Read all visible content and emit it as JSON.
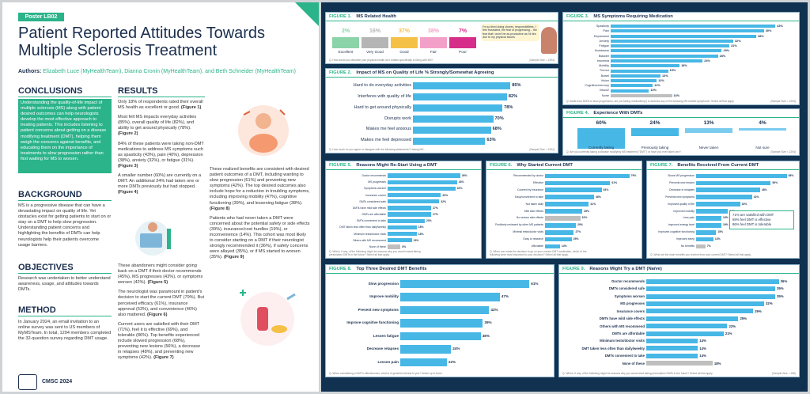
{
  "poster": {
    "tag": "Poster LB02",
    "title": "Patient Reported Attitudes Towards Multiple Sclerosis Treatment",
    "authors_label": "Authors:",
    "authors": "Elizabeth Luce (MyHealthTeam), Dianna Cronin (MyHealthTeam), and Beth Schneider (MyHealthTeam)",
    "conclusions_h": "CONCLUSIONS",
    "conclusions": "Understanding the quality-of-life impact of multiple sclerosis (MS) along with patient desired outcomes can help neurologists develop the most effective approach to treating patients. This includes listening to patient concerns about getting on a disease modifying treatment (DMT), helping them weigh the concerns against benefits, and educating them on the importance of treatments to slow progression rather than first waiting for MS to worsen.",
    "background_h": "BACKGROUND",
    "background": "MS is a progressive disease that can have a devastating impact on quality of life. Yet obstacles exist for getting patients to start on or stay on a DMT to help slow progression. Understanding patient concerns and highlighting the benefits of DMTs can help neurologists help their patients overcome usage barriers.",
    "objectives_h": "OBJECTIVES",
    "objectives": "Research was undertaken to better understand awareness, usage, and attitudes towards DMTs.",
    "method_h": "METHOD",
    "method": "In January 2024, an email invitation to an online survey was sent to US members of MyMSTeam. In total, 1294 members completed the 32-question survey regarding DMT usage.",
    "results_h": "RESULTS",
    "results_col1": [
      {
        "t": "Only 18% of respondents rated their overall MS health as excellent or good. ",
        "b": "(Figure 1)"
      },
      {
        "t": "Most felt MS impacts everyday activities (85%), overall quality of life (82%), and ability to get around physically (78%). ",
        "b": "(Figure 2)"
      },
      {
        "t": "84% of these patients were taking non-DMT medications to address MS symptoms such as spasticity (43%), pain (40%), depression (38%), anxiety (32%), or fatigue (31%). ",
        "b": "(Figure 3)"
      },
      {
        "t": "A smaller number (60%) are currently on a DMT. An additional 24% had taken one or more DMTs previously but had stopped. ",
        "b": "(Figure 4)"
      }
    ],
    "results_col1b": [
      {
        "t": "These abandoners might consider going back on a DMT if their doctor recommends (45%), MS progresses (43%), or symptoms worsen (42%). ",
        "b": "(Figure 5)"
      },
      {
        "t": "The neurologist was paramount in patient's decision to start the current DMT (79%). But perceived efficacy (61%), insurance approval (53%), and convenience (46%) also mattered. ",
        "b": "(Figure 6)"
      },
      {
        "t": "Current users are satisfied with their DMT (71%), feel it is effective (69%), and tolerable (86%). Top benefits experienced include slowed progression (68%), preventing new lesions (56%), a decrease in relapses (48%), and preventing new symptoms (42%). ",
        "b": "(Figure 7)"
      }
    ],
    "results_col2": [
      {
        "t": "These realized benefits are consistent with desired patient outcomes of a DMT, including wanting to slow progression (61%) and preventing new symptoms (42%). The top desired outcomes also include hope for a reduction in troubling symptoms, including improving mobility (47%), cognitive functioning (39%), and lessening fatigue (38%). ",
        "b": "(Figure 8)"
      },
      {
        "t": "Patients who had never taken a DMT were concerned about the potential safety or side effects (39%), insurance/cost hurdles (19%), or inconvenience (14%). This cohort was most likely to consider starting on a DMT if their neurologist strongly recommended it (36%), if safety concerns were allayed (35%), or if MS started to worsen (35%). ",
        "b": "(Figure 9)"
      }
    ],
    "footer": "CMSC 2024"
  },
  "colors": {
    "accent": "#2bb38a",
    "navy": "#1b2f4e",
    "bar": "#47b7e6",
    "bg": "#10314f"
  },
  "figures": {
    "f1": {
      "num": "FIGURE 1.",
      "title": "MS Related Health",
      "note": "Q. How would you describe your physical health as it relates specifically to living with MS?",
      "src": "(Sample Size = 1294)",
      "items": [
        {
          "label": "Excellent",
          "value": "2%",
          "color": "#8bd3a8"
        },
        {
          "label": "Very Good",
          "value": "16%",
          "color": "#b5b5b5"
        },
        {
          "label": "Good",
          "value": "37%",
          "color": "#f5c046"
        },
        {
          "label": "Fair",
          "value": "38%",
          "color": "#f3a0c8"
        },
        {
          "label": "Poor",
          "value": "7%",
          "color": "#d62d8a"
        }
      ],
      "quote": "I'm so tired doing chores, responsibilities, I feel frustrated, the fear of progressing... the fear that I won't be as productive as I'd like due to my physical issues"
    },
    "f2": {
      "num": "FIGURE 2.",
      "title": "Impact of MS on Quality of Life % Strongly/Somewhat Agreeing",
      "note": "Q. How much do you agree or disagree with the following statements? Having MS...",
      "src": "(Sample Size = 1294)",
      "rows": [
        {
          "label": "Hard to do everyday activities",
          "value": 85
        },
        {
          "label": "Interferes with quality of life",
          "value": 82
        },
        {
          "label": "Hard to get around physically",
          "value": 78
        },
        {
          "label": "Disrupts work",
          "value": 70
        },
        {
          "label": "Makes me feel anxious",
          "value": 68
        },
        {
          "label": "Makes me feel depressed",
          "value": 63
        }
      ]
    },
    "f3": {
      "num": "FIGURE 3.",
      "title": "MS Symptoms Requiring Medication",
      "note": "Q. Aside from DMTs to slow progression, are you taking medication(s) to address any of the following MS-related symptoms? Select all that apply.",
      "src": "(Sample Size = 1294)",
      "rows": [
        {
          "label": "Spasticity",
          "value": 43
        },
        {
          "label": "Pain",
          "value": 40
        },
        {
          "label": "Depression",
          "value": 38
        },
        {
          "label": "Anxiety",
          "value": 32
        },
        {
          "label": "Fatigue",
          "value": 31
        },
        {
          "label": "Numbness",
          "value": 29
        },
        {
          "label": "Bladder",
          "value": 28
        },
        {
          "label": "Insomnia",
          "value": 24
        },
        {
          "label": "Mobility",
          "value": 18
        },
        {
          "label": "Tremor",
          "value": 15
        },
        {
          "label": "Bowel",
          "value": 13
        },
        {
          "label": "Vision",
          "value": 12
        },
        {
          "label": "Cognitive/memory",
          "value": 11
        },
        {
          "label": "Vision2",
          "value": 10
        },
        {
          "label": "None",
          "value": 16
        }
      ]
    },
    "f4": {
      "num": "FIGURE 4.",
      "title": "Experience With DMTs",
      "note": "Q. Are you currently taking a disease modifying MS treatment (\"DMT\") or have you ever taken one?",
      "src": "(Sample Size = 1294)",
      "items": [
        {
          "label": "Currently taking",
          "value": 60
        },
        {
          "label": "Previously taking",
          "value": 24
        },
        {
          "label": "Never taken",
          "value": 13
        },
        {
          "label": "Not sure",
          "value": 4
        }
      ]
    },
    "f5": {
      "num": "FIGURE 5.",
      "title": "Reasons Might Re-Start Using a DMT",
      "note": "Q. Which, if any, of the following might be reasons why you would restart taking prescription DMTs in the future? Select all that apply.",
      "src": "",
      "rows": [
        {
          "label": "Doctor recommends",
          "value": 45
        },
        {
          "label": "MS progresses",
          "value": 43
        },
        {
          "label": "Symptoms worsen",
          "value": 42
        },
        {
          "label": "Insurance covers",
          "value": 33
        },
        {
          "label": "DMTs considered safe",
          "value": 32
        },
        {
          "label": "DMTs have mild side effects",
          "value": 27
        },
        {
          "label": "DMTs are affordable",
          "value": 27
        },
        {
          "label": "DMTs convenient to take",
          "value": 23
        },
        {
          "label": "DMT taken less often than daily/weekly",
          "value": 18
        },
        {
          "label": "Minimum tests/doctor visits",
          "value": 18
        },
        {
          "label": "Others with MS recommend",
          "value": 15
        },
        {
          "label": "None of these",
          "value": 8
        }
      ]
    },
    "f6": {
      "num": "FIGURE 6.",
      "title": "Why Started Current DMT",
      "note": "Q. When you made the decision to go on your current DMT medication, which of the following were most important to your decision? Select all that apply.",
      "src": "",
      "rows": [
        {
          "label": "Recommended by doctor",
          "value": 79
        },
        {
          "label": "Effective",
          "value": 61
        },
        {
          "label": "Covered by insurance",
          "value": 53
        },
        {
          "label": "Easy/convenient to take",
          "value": 46
        },
        {
          "label": "Not taken daily",
          "value": 41
        },
        {
          "label": "Mild side effects",
          "value": 35
        },
        {
          "label": "No serious side effects",
          "value": 33
        },
        {
          "label": "Positively reviewed by other MS patients",
          "value": 29
        },
        {
          "label": "Minimal tests/doctor visits",
          "value": 27
        },
        {
          "label": "Easy to research",
          "value": 25
        },
        {
          "label": "Affordable",
          "value": 14
        }
      ]
    },
    "f7": {
      "num": "FIGURE 7.",
      "title": "Benefits Received From Current DMT",
      "note": "Q. What are the main benefits you receive from your current DMT? Select all that apply.",
      "src": "",
      "rows": [
        {
          "label": "Slows MS progression",
          "value": 68
        },
        {
          "label": "Prevents new lesions",
          "value": 56
        },
        {
          "label": "Decrease in relapses",
          "value": 48
        },
        {
          "label": "Prevents new symptoms",
          "value": 42
        },
        {
          "label": "Improved quality of life",
          "value": 33
        },
        {
          "label": "Improved mobility",
          "value": 24
        },
        {
          "label": "Less pain",
          "value": 19
        },
        {
          "label": "Improved energy level",
          "value": 19
        },
        {
          "label": "Improved cognitive functioning",
          "value": 15
        },
        {
          "label": "Improved sleep",
          "value": 13
        },
        {
          "label": "No benefits",
          "value": 7
        }
      ],
      "legend": [
        "71% are satisfied with DMT",
        "69% feel DMT is effective",
        "86% feel DMT is tolerable"
      ]
    },
    "f8": {
      "num": "FIGURE 8.",
      "title": "Top Three Desired DMT Benefits",
      "note": "Q. When considering a DMT's effectiveness, what is of greatest interest to you? Select up to three.",
      "src": "",
      "rows": [
        {
          "label": "Slow progression",
          "value": 61
        },
        {
          "label": "Improve mobility",
          "value": 47
        },
        {
          "label": "Prevent new symptoms",
          "value": 42
        },
        {
          "label": "Improve cognitive functioning",
          "value": 39
        },
        {
          "label": "Lessen fatigue",
          "value": 38
        },
        {
          "label": "Decrease relapses",
          "value": 24
        },
        {
          "label": "Lessen pain",
          "value": 22
        }
      ]
    },
    "f9": {
      "num": "FIGURE 9.",
      "title": "Reasons Might Try a DMT (Naïve)",
      "note": "Q. Which, if any, of the following might be reasons why you would start taking prescription DMTs in the future? Select all that apply.",
      "src": "(Sample Size = 168)",
      "rows": [
        {
          "label": "Doctor recommends",
          "value": 36
        },
        {
          "label": "DMTs considered safe",
          "value": 35
        },
        {
          "label": "Symptoms worsen",
          "value": 35
        },
        {
          "label": "MS progresses",
          "value": 32
        },
        {
          "label": "Insurance covers",
          "value": 29
        },
        {
          "label": "DMTs have mild side effects",
          "value": 25
        },
        {
          "label": "Others with MS recommend",
          "value": 22
        },
        {
          "label": "DMTs are affordable",
          "value": 21
        },
        {
          "label": "Minimum tests/doctor visits",
          "value": 14
        },
        {
          "label": "DMT taken less often than daily/weekly",
          "value": 14
        },
        {
          "label": "DMTs convenient to take",
          "value": 14
        },
        {
          "label": "None of these",
          "value": 18
        }
      ]
    }
  }
}
